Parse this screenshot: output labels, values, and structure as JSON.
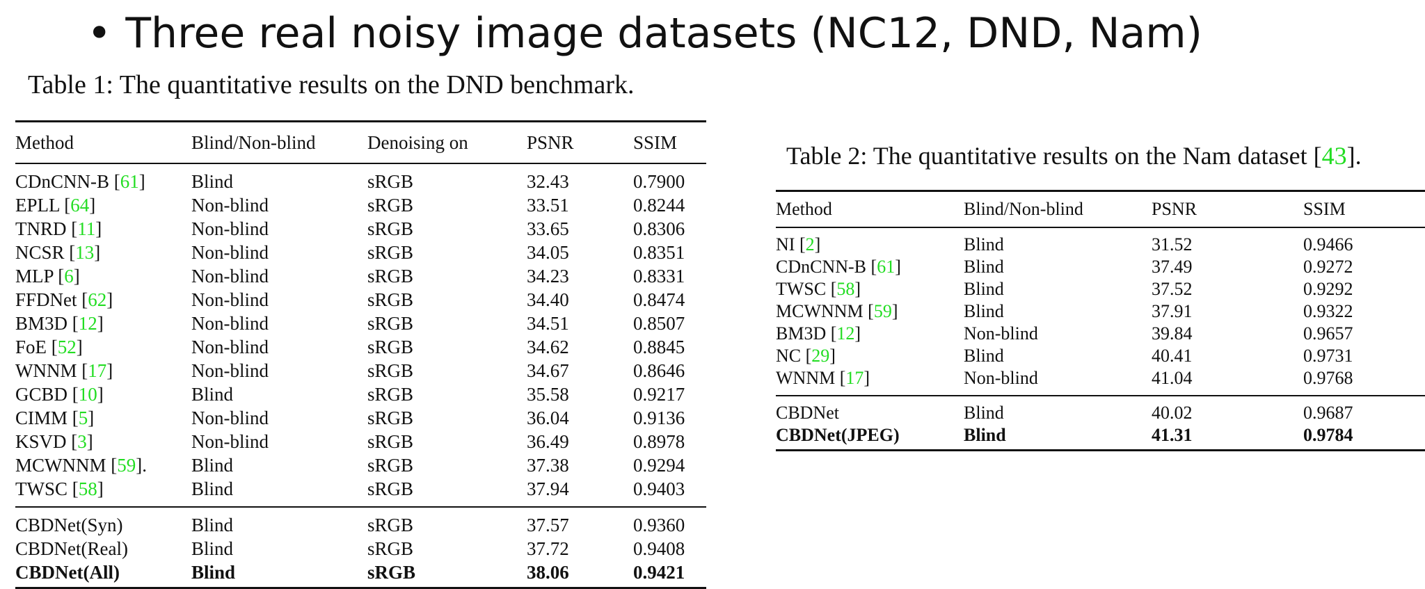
{
  "slide": {
    "bullet_text": "Three real noisy image datasets (NC12, DND, Nam)"
  },
  "colors": {
    "citation": "#22dd22",
    "text": "#111111"
  },
  "table1": {
    "caption_prefix": "Table 1: ",
    "caption_text": "The quantitative results on the DND benchmark.",
    "columns": [
      "Method",
      "Blind/Non-blind",
      "Denoising on",
      "PSNR",
      "SSIM"
    ],
    "rows": [
      {
        "method": "CDnCNN-B ",
        "cite": "61",
        "suffix": "",
        "blind": "Blind",
        "domain": "sRGB",
        "psnr": "32.43",
        "ssim": "0.7900"
      },
      {
        "method": "EPLL ",
        "cite": "64",
        "suffix": "",
        "blind": "Non-blind",
        "domain": "sRGB",
        "psnr": "33.51",
        "ssim": "0.8244"
      },
      {
        "method": "TNRD ",
        "cite": "11",
        "suffix": "",
        "blind": "Non-blind",
        "domain": "sRGB",
        "psnr": "33.65",
        "ssim": "0.8306"
      },
      {
        "method": "NCSR ",
        "cite": "13",
        "suffix": "",
        "blind": "Non-blind",
        "domain": "sRGB",
        "psnr": "34.05",
        "ssim": "0.8351"
      },
      {
        "method": "MLP ",
        "cite": "6",
        "suffix": "",
        "blind": "Non-blind",
        "domain": "sRGB",
        "psnr": "34.23",
        "ssim": "0.8331"
      },
      {
        "method": "FFDNet ",
        "cite": "62",
        "suffix": "",
        "blind": "Non-blind",
        "domain": "sRGB",
        "psnr": "34.40",
        "ssim": "0.8474"
      },
      {
        "method": "BM3D ",
        "cite": "12",
        "suffix": "",
        "blind": "Non-blind",
        "domain": "sRGB",
        "psnr": "34.51",
        "ssim": "0.8507"
      },
      {
        "method": "FoE ",
        "cite": "52",
        "suffix": "",
        "blind": "Non-blind",
        "domain": "sRGB",
        "psnr": "34.62",
        "ssim": "0.8845"
      },
      {
        "method": "WNNM ",
        "cite": "17",
        "suffix": "",
        "blind": "Non-blind",
        "domain": "sRGB",
        "psnr": "34.67",
        "ssim": "0.8646"
      },
      {
        "method": "GCBD ",
        "cite": "10",
        "suffix": "",
        "blind": "Blind",
        "domain": "sRGB",
        "psnr": "35.58",
        "ssim": "0.9217"
      },
      {
        "method": "CIMM ",
        "cite": "5",
        "suffix": "",
        "blind": "Non-blind",
        "domain": "sRGB",
        "psnr": "36.04",
        "ssim": "0.9136"
      },
      {
        "method": "KSVD ",
        "cite": "3",
        "suffix": "",
        "blind": "Non-blind",
        "domain": "sRGB",
        "psnr": "36.49",
        "ssim": "0.8978"
      },
      {
        "method": "MCWNNM ",
        "cite": "59",
        "suffix": ".",
        "blind": "Blind",
        "domain": "sRGB",
        "psnr": "37.38",
        "ssim": "0.9294"
      },
      {
        "method": "TWSC ",
        "cite": "58",
        "suffix": "",
        "blind": "Blind",
        "domain": "sRGB",
        "psnr": "37.94",
        "ssim": "0.9403"
      }
    ],
    "ours": [
      {
        "method": "CBDNet(Syn)",
        "blind": "Blind",
        "domain": "sRGB",
        "psnr": "37.57",
        "ssim": "0.9360",
        "bold": false
      },
      {
        "method": "CBDNet(Real)",
        "blind": "Blind",
        "domain": "sRGB",
        "psnr": "37.72",
        "ssim": "0.9408",
        "bold": false
      },
      {
        "method": "CBDNet(All)",
        "blind": "Blind",
        "domain": "sRGB",
        "psnr": "38.06",
        "ssim": "0.9421",
        "bold": true
      }
    ]
  },
  "table2": {
    "caption_text": "Table 2: The quantitative results on the Nam dataset ",
    "caption_cite": "43",
    "caption_suffix": ".",
    "columns": [
      "Method",
      "Blind/Non-blind",
      "PSNR",
      "SSIM"
    ],
    "rows": [
      {
        "method": "NI ",
        "cite": "2",
        "blind": "Blind",
        "psnr": "31.52",
        "ssim": "0.9466"
      },
      {
        "method": "CDnCNN-B ",
        "cite": "61",
        "blind": "Blind",
        "psnr": "37.49",
        "ssim": "0.9272"
      },
      {
        "method": "TWSC ",
        "cite": "58",
        "blind": "Blind",
        "psnr": "37.52",
        "ssim": "0.9292"
      },
      {
        "method": "MCWNNM ",
        "cite": "59",
        "blind": "Blind",
        "psnr": "37.91",
        "ssim": "0.9322"
      },
      {
        "method": "BM3D ",
        "cite": "12",
        "blind": "Non-blind",
        "psnr": "39.84",
        "ssim": "0.9657"
      },
      {
        "method": "NC ",
        "cite": "29",
        "blind": "Blind",
        "psnr": "40.41",
        "ssim": "0.9731"
      },
      {
        "method": "WNNM ",
        "cite": "17",
        "blind": "Non-blind",
        "psnr": "41.04",
        "ssim": "0.9768"
      }
    ],
    "ours": [
      {
        "method": "CBDNet",
        "blind": "Blind",
        "psnr": "40.02",
        "ssim": "0.9687",
        "bold": false
      },
      {
        "method": "CBDNet(JPEG)",
        "blind": "Blind",
        "psnr": "41.31",
        "ssim": "0.9784",
        "bold": true
      }
    ]
  }
}
